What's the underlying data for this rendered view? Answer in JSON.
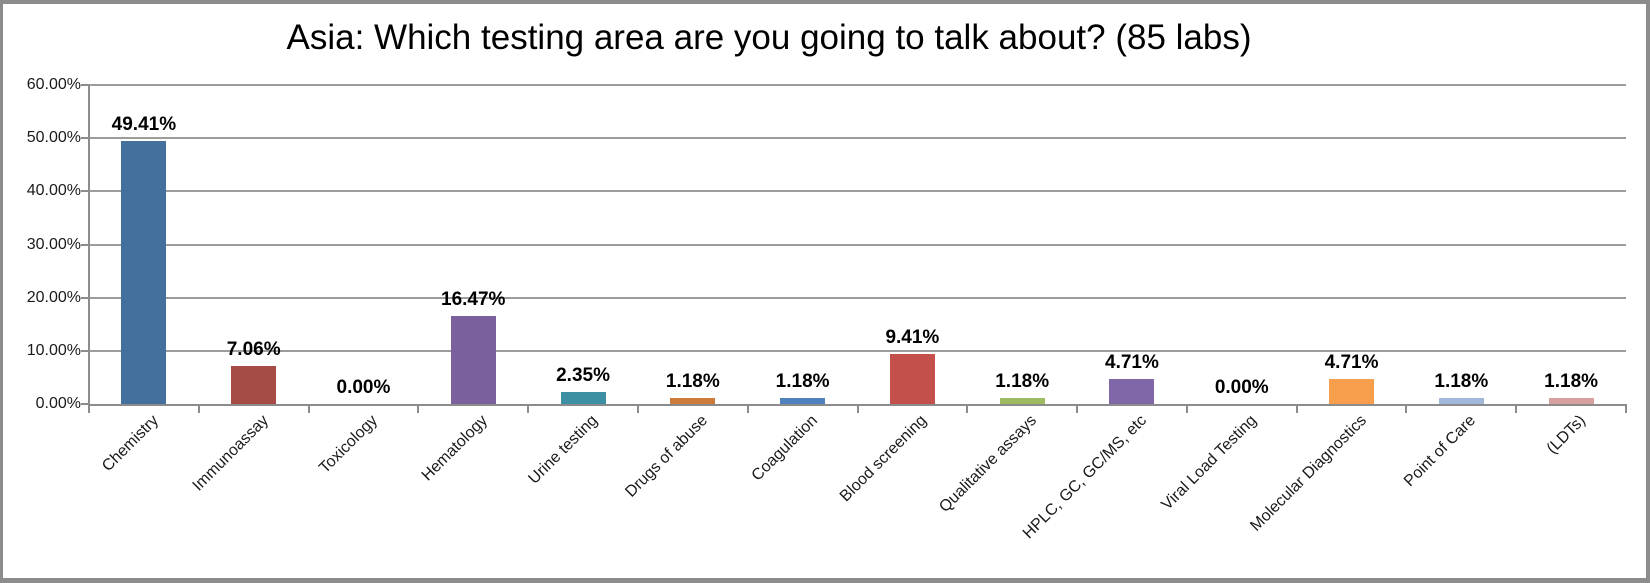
{
  "title": "Asia: Which testing area are you going to talk about? (85 labs)",
  "chart_data": {
    "type": "bar",
    "title": "Asia: Which testing area are you going to talk about? (85 labs)",
    "categories": [
      "Chemistry",
      "Immunoassay",
      "Toxicology",
      "Hematology",
      "Urine testing",
      "Drugs of abuse",
      "Coagulation",
      "Blood screening",
      "Qualitative assays",
      "HPLC, GC, GC/MS, etc",
      "Viral Load Testing",
      "Molecular Diagnostics",
      "Point of Care",
      "(LDTs)"
    ],
    "values": [
      49.41,
      7.06,
      0.0,
      16.47,
      2.35,
      1.18,
      1.18,
      9.41,
      1.18,
      4.71,
      0.0,
      4.71,
      1.18,
      1.18
    ],
    "data_labels": [
      "49.41%",
      "7.06%",
      "0.00%",
      "16.47%",
      "2.35%",
      "1.18%",
      "1.18%",
      "9.41%",
      "1.18%",
      "4.71%",
      "0.00%",
      "4.71%",
      "1.18%",
      "1.18%"
    ],
    "bar_colors": [
      "#44709D",
      "#A64B45",
      "#89A54E",
      "#7B609E",
      "#3D90A4",
      "#CC7B38",
      "#4F81BD",
      "#C4504C",
      "#9EBB61",
      "#8067A7",
      "#4BACC6",
      "#F79E4D",
      "#A2B8DA",
      "#D9A0A0"
    ],
    "xlabel": "",
    "ylabel": "",
    "ylim": [
      0,
      60
    ],
    "ytick_step": 10,
    "ytick_labels": [
      "0.00%",
      "10.00%",
      "20.00%",
      "30.00%",
      "40.00%",
      "50.00%",
      "60.00%"
    ],
    "grid": true,
    "legend": "none",
    "axis_color": "#8C8C8C",
    "grid_color": "#9C9C9C"
  }
}
